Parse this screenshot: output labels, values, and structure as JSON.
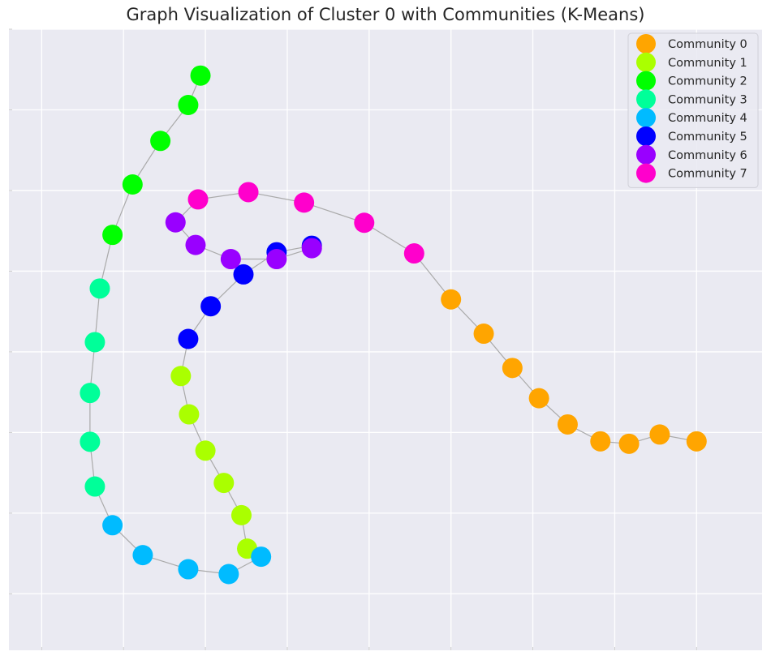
{
  "chart_data": {
    "type": "scatter",
    "title": "Graph Visualization of Cluster 0 with Communities (K-Means)",
    "xlabel": "",
    "ylabel": "",
    "xlim": [
      -0.08,
      1.76
    ],
    "ylim": [
      -0.34,
      1.2
    ],
    "grid": true,
    "legend_position": "top-right",
    "tick_labels_shown": false,
    "edge_color": "#aaaaaa",
    "series": [
      {
        "name": "Community 0",
        "color": "#FFA500",
        "points": [
          [
            1.0,
            0.53
          ],
          [
            1.08,
            0.445
          ],
          [
            1.15,
            0.36
          ],
          [
            1.215,
            0.285
          ],
          [
            1.285,
            0.22
          ],
          [
            1.365,
            0.178
          ],
          [
            1.435,
            0.172
          ],
          [
            1.51,
            0.195
          ],
          [
            1.6,
            0.178
          ]
        ]
      },
      {
        "name": "Community 1",
        "color": "#AAFF00",
        "points": [
          [
            0.34,
            0.34
          ],
          [
            0.36,
            0.245
          ],
          [
            0.4,
            0.155
          ],
          [
            0.445,
            0.075
          ],
          [
            0.488,
            -0.005
          ],
          [
            0.502,
            -0.088
          ]
        ]
      },
      {
        "name": "Community 2",
        "color": "#00FF00",
        "points": [
          [
            0.388,
            1.085
          ],
          [
            0.358,
            1.012
          ],
          [
            0.29,
            0.923
          ],
          [
            0.222,
            0.815
          ],
          [
            0.173,
            0.69
          ]
        ]
      },
      {
        "name": "Community 3",
        "color": "#00FF99",
        "points": [
          [
            0.142,
            0.557
          ],
          [
            0.13,
            0.424
          ],
          [
            0.118,
            0.298
          ],
          [
            0.118,
            0.177
          ],
          [
            0.13,
            0.066
          ]
        ]
      },
      {
        "name": "Community 4",
        "color": "#00BBFF",
        "points": [
          [
            0.173,
            -0.03
          ],
          [
            0.247,
            -0.104
          ],
          [
            0.358,
            -0.139
          ],
          [
            0.457,
            -0.151
          ],
          [
            0.536,
            -0.108
          ]
        ]
      },
      {
        "name": "Community 5",
        "color": "#0000FF",
        "points": [
          [
            0.358,
            0.432
          ],
          [
            0.413,
            0.513
          ],
          [
            0.493,
            0.592
          ],
          [
            0.574,
            0.647
          ],
          [
            0.66,
            0.663
          ]
        ]
      },
      {
        "name": "Community 6",
        "color": "#9900FF",
        "points": [
          [
            0.327,
            0.721
          ],
          [
            0.376,
            0.665
          ],
          [
            0.462,
            0.63
          ],
          [
            0.574,
            0.63
          ],
          [
            0.66,
            0.657
          ]
        ]
      },
      {
        "name": "Community 7",
        "color": "#FF00CC",
        "points": [
          [
            0.382,
            0.778
          ],
          [
            0.505,
            0.796
          ],
          [
            0.641,
            0.77
          ],
          [
            0.788,
            0.72
          ],
          [
            0.91,
            0.644
          ]
        ]
      }
    ],
    "edges": [
      [
        [
          0.388,
          1.085
        ],
        [
          0.358,
          1.012
        ]
      ],
      [
        [
          0.358,
          1.012
        ],
        [
          0.29,
          0.923
        ]
      ],
      [
        [
          0.29,
          0.923
        ],
        [
          0.222,
          0.815
        ]
      ],
      [
        [
          0.222,
          0.815
        ],
        [
          0.173,
          0.69
        ]
      ],
      [
        [
          0.173,
          0.69
        ],
        [
          0.142,
          0.557
        ]
      ],
      [
        [
          0.142,
          0.557
        ],
        [
          0.13,
          0.424
        ]
      ],
      [
        [
          0.13,
          0.424
        ],
        [
          0.118,
          0.298
        ]
      ],
      [
        [
          0.118,
          0.298
        ],
        [
          0.118,
          0.177
        ]
      ],
      [
        [
          0.118,
          0.177
        ],
        [
          0.13,
          0.066
        ]
      ],
      [
        [
          0.13,
          0.066
        ],
        [
          0.173,
          -0.03
        ]
      ],
      [
        [
          0.173,
          -0.03
        ],
        [
          0.247,
          -0.104
        ]
      ],
      [
        [
          0.247,
          -0.104
        ],
        [
          0.358,
          -0.139
        ]
      ],
      [
        [
          0.358,
          -0.139
        ],
        [
          0.457,
          -0.151
        ]
      ],
      [
        [
          0.457,
          -0.151
        ],
        [
          0.536,
          -0.108
        ]
      ],
      [
        [
          0.536,
          -0.108
        ],
        [
          0.502,
          -0.088
        ]
      ],
      [
        [
          0.502,
          -0.088
        ],
        [
          0.488,
          -0.005
        ]
      ],
      [
        [
          0.488,
          -0.005
        ],
        [
          0.445,
          0.075
        ]
      ],
      [
        [
          0.445,
          0.075
        ],
        [
          0.4,
          0.155
        ]
      ],
      [
        [
          0.4,
          0.155
        ],
        [
          0.36,
          0.245
        ]
      ],
      [
        [
          0.36,
          0.245
        ],
        [
          0.34,
          0.34
        ]
      ],
      [
        [
          0.34,
          0.34
        ],
        [
          0.358,
          0.432
        ]
      ],
      [
        [
          0.358,
          0.432
        ],
        [
          0.413,
          0.513
        ]
      ],
      [
        [
          0.413,
          0.513
        ],
        [
          0.493,
          0.592
        ]
      ],
      [
        [
          0.493,
          0.592
        ],
        [
          0.574,
          0.647
        ]
      ],
      [
        [
          0.574,
          0.647
        ],
        [
          0.66,
          0.663
        ]
      ],
      [
        [
          0.66,
          0.663
        ],
        [
          0.66,
          0.657
        ]
      ],
      [
        [
          0.66,
          0.657
        ],
        [
          0.574,
          0.63
        ]
      ],
      [
        [
          0.574,
          0.63
        ],
        [
          0.462,
          0.63
        ]
      ],
      [
        [
          0.462,
          0.63
        ],
        [
          0.376,
          0.665
        ]
      ],
      [
        [
          0.376,
          0.665
        ],
        [
          0.327,
          0.721
        ]
      ],
      [
        [
          0.327,
          0.721
        ],
        [
          0.382,
          0.778
        ]
      ],
      [
        [
          0.382,
          0.778
        ],
        [
          0.505,
          0.796
        ]
      ],
      [
        [
          0.505,
          0.796
        ],
        [
          0.641,
          0.77
        ]
      ],
      [
        [
          0.641,
          0.77
        ],
        [
          0.788,
          0.72
        ]
      ],
      [
        [
          0.788,
          0.72
        ],
        [
          0.91,
          0.644
        ]
      ],
      [
        [
          0.91,
          0.644
        ],
        [
          1.0,
          0.53
        ]
      ],
      [
        [
          1.0,
          0.53
        ],
        [
          1.08,
          0.445
        ]
      ],
      [
        [
          1.08,
          0.445
        ],
        [
          1.15,
          0.36
        ]
      ],
      [
        [
          1.15,
          0.36
        ],
        [
          1.215,
          0.285
        ]
      ],
      [
        [
          1.215,
          0.285
        ],
        [
          1.285,
          0.22
        ]
      ],
      [
        [
          1.285,
          0.22
        ],
        [
          1.365,
          0.178
        ]
      ],
      [
        [
          1.365,
          0.178
        ],
        [
          1.435,
          0.172
        ]
      ],
      [
        [
          1.435,
          0.172
        ],
        [
          1.51,
          0.195
        ]
      ],
      [
        [
          1.51,
          0.195
        ],
        [
          1.6,
          0.178
        ]
      ]
    ],
    "x_gridlines": [
      0,
      0.2,
      0.4,
      0.6,
      0.8,
      1.0,
      1.2,
      1.4,
      1.6
    ],
    "y_gridlines": [
      -0.2,
      0,
      0.2,
      0.4,
      0.6,
      0.8,
      1.0,
      1.2
    ]
  }
}
